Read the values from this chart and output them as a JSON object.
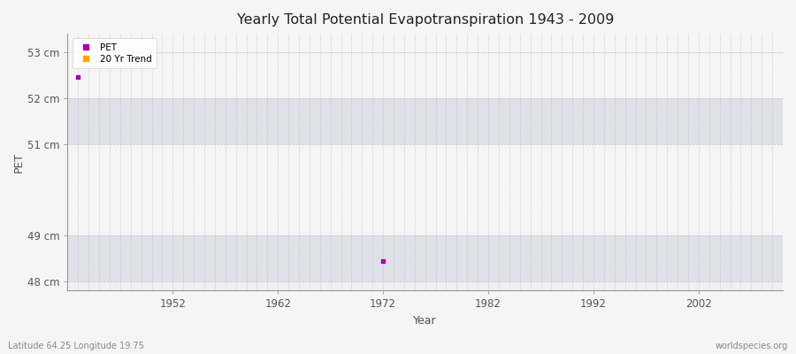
{
  "title": "Yearly Total Potential Evapotranspiration 1943 - 2009",
  "xlabel": "Year",
  "ylabel": "PET",
  "fig_bg_color": "#f5f5f5",
  "plot_bg_color": "#f0f0f0",
  "band_light_color": "#f5f5f5",
  "band_dark_color": "#e0e0e8",
  "ylim": [
    47.8,
    53.4
  ],
  "xlim": [
    1942,
    2010
  ],
  "yticks": [
    48,
    49,
    51,
    52,
    53
  ],
  "ytick_labels": [
    "48 cm",
    "49 cm",
    "51 cm",
    "52 cm",
    "53 cm"
  ],
  "xticks": [
    1952,
    1962,
    1972,
    1982,
    1992,
    2002
  ],
  "pet_color": "#aa00aa",
  "trend_color": "#ffa500",
  "pet_points": [
    [
      1943,
      52.45
    ],
    [
      1972,
      48.45
    ]
  ],
  "footer_left": "Latitude 64.25 Longitude 19.75",
  "footer_right": "worldspecies.org",
  "grid_color": "#bbbbcc",
  "legend_labels": [
    "PET",
    "20 Yr Trend"
  ],
  "title_color": "#222222",
  "tick_color": "#555555",
  "bands": [
    [
      48.0,
      49.0,
      true
    ],
    [
      49.0,
      51.0,
      false
    ],
    [
      51.0,
      52.0,
      true
    ],
    [
      52.0,
      53.4,
      false
    ]
  ]
}
